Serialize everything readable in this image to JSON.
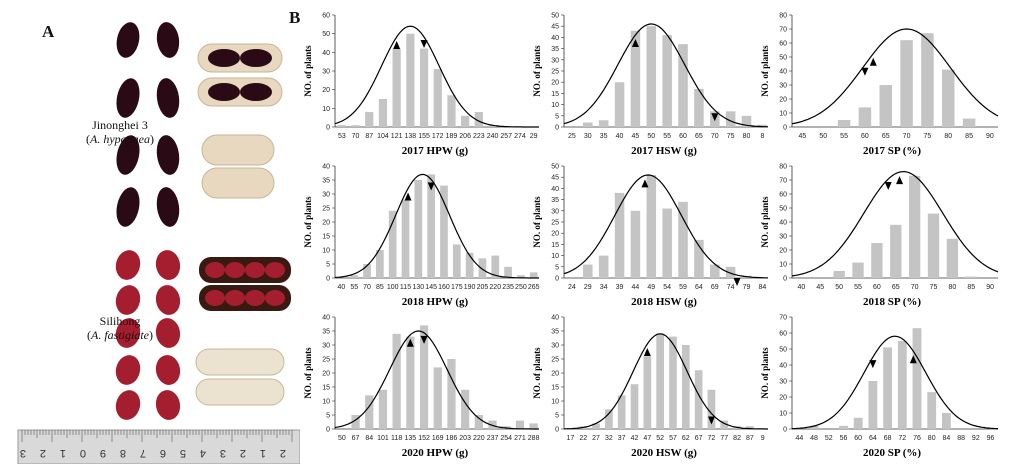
{
  "panel_a": {
    "letter": "A",
    "cultivars": [
      {
        "name": "Jinonghei 3",
        "species": "A. hypogaea"
      },
      {
        "name": "Silihong",
        "species": "A. fastigiate"
      }
    ],
    "seed_colors": {
      "black": "#2a0a14",
      "red": "#a51e30",
      "pod": "#e8d8c0",
      "pod_dark": "#c9b597"
    },
    "ruler_numbers": [
      "3",
      "2",
      "1",
      "0",
      "9",
      "8",
      "7",
      "6",
      "5",
      "4",
      "3",
      "2",
      "1",
      "2"
    ]
  },
  "panel_b": {
    "letter": "B"
  },
  "colors": {
    "bar": "#c4c4c4",
    "curve": "#000000",
    "axis": "#333333"
  },
  "chart_data": [
    {
      "type": "bar",
      "xlabel": "2017 HPW (g)",
      "ylabel": "NO. of plants",
      "ylim": [
        0,
        60
      ],
      "yticks": [
        0,
        10,
        20,
        30,
        40,
        50,
        60
      ],
      "categories": [
        "53",
        "70",
        "87",
        "104",
        "121",
        "138",
        "155",
        "172",
        "189",
        "206",
        "223",
        "240",
        "257",
        "274",
        "29"
      ],
      "values": [
        1,
        1,
        8,
        15,
        42,
        50,
        42,
        31,
        17,
        6,
        8,
        1,
        0,
        0,
        0
      ],
      "curve": {
        "mean": 138,
        "peak": 54
      },
      "markers": [
        {
          "dir": "up",
          "x": 121
        },
        {
          "dir": "down",
          "x": 155
        }
      ]
    },
    {
      "type": "bar",
      "xlabel": "2017 HSW (g)",
      "ylabel": "NO. of plants",
      "ylim": [
        0,
        50
      ],
      "yticks": [
        0,
        5,
        10,
        15,
        20,
        25,
        30,
        35,
        40,
        45,
        50
      ],
      "categories": [
        "25",
        "30",
        "35",
        "40",
        "45",
        "50",
        "55",
        "60",
        "65",
        "70",
        "75",
        "80",
        "8"
      ],
      "values": [
        0,
        2,
        3,
        20,
        43,
        45,
        41,
        37,
        17,
        7,
        7,
        5,
        1
      ],
      "curve": {
        "mean": 50,
        "peak": 46
      },
      "markers": [
        {
          "dir": "up",
          "x": 45
        },
        {
          "dir": "down",
          "x": 70
        }
      ]
    },
    {
      "type": "bar",
      "xlabel": "2017 SP (%)",
      "ylabel": "NO. of plants",
      "ylim": [
        0,
        80
      ],
      "yticks": [
        0,
        10,
        20,
        30,
        40,
        50,
        60,
        70,
        80
      ],
      "categories": [
        "45",
        "50",
        "55",
        "60",
        "65",
        "70",
        "75",
        "80",
        "85",
        "90"
      ],
      "values": [
        0,
        0,
        5,
        14,
        30,
        62,
        67,
        41,
        6,
        0
      ],
      "curve": {
        "mean": 70,
        "peak": 70
      },
      "markers": [
        {
          "dir": "down",
          "x": 60
        },
        {
          "dir": "up",
          "x": 62
        }
      ]
    },
    {
      "type": "bar",
      "xlabel": "2018 HPW (g)",
      "ylabel": "NO. of plants",
      "ylim": [
        0,
        40
      ],
      "yticks": [
        0,
        5,
        10,
        15,
        20,
        25,
        30,
        35,
        40
      ],
      "categories": [
        "40",
        "55",
        "70",
        "85",
        "100",
        "115",
        "130",
        "145",
        "160",
        "175",
        "190",
        "205",
        "220",
        "235",
        "250",
        "265"
      ],
      "values": [
        0,
        1,
        5,
        10,
        24,
        28,
        35,
        37,
        33,
        12,
        9,
        7,
        8,
        4,
        1,
        2
      ],
      "curve": {
        "mean": 135,
        "peak": 37
      },
      "markers": [
        {
          "dir": "up",
          "x": 118
        },
        {
          "dir": "down",
          "x": 145
        }
      ]
    },
    {
      "type": "bar",
      "xlabel": "2018 HSW (g)",
      "ylabel": "NO. of plants",
      "ylim": [
        0,
        50
      ],
      "yticks": [
        0,
        5,
        10,
        15,
        20,
        25,
        30,
        35,
        40,
        45,
        50
      ],
      "categories": [
        "24",
        "29",
        "34",
        "39",
        "44",
        "49",
        "54",
        "59",
        "64",
        "69",
        "74",
        "79",
        "84"
      ],
      "values": [
        0,
        6,
        10,
        38,
        30,
        46,
        31,
        34,
        17,
        6,
        5,
        1,
        0
      ],
      "curve": {
        "mean": 48,
        "peak": 46
      },
      "markers": [
        {
          "dir": "up",
          "x": 47
        },
        {
          "dir": "down",
          "x": 76
        }
      ]
    },
    {
      "type": "bar",
      "xlabel": "2018 SP (%)",
      "ylabel": "NO. of plants",
      "ylim": [
        0,
        80
      ],
      "yticks": [
        0,
        10,
        20,
        30,
        40,
        50,
        60,
        70,
        80
      ],
      "categories": [
        "40",
        "45",
        "50",
        "55",
        "60",
        "65",
        "70",
        "75",
        "80",
        "85",
        "90"
      ],
      "values": [
        0,
        0,
        5,
        11,
        25,
        38,
        73,
        46,
        28,
        1,
        0
      ],
      "curve": {
        "mean": 67,
        "peak": 76
      },
      "markers": [
        {
          "dir": "down",
          "x": 63
        },
        {
          "dir": "up",
          "x": 66
        }
      ]
    },
    {
      "type": "bar",
      "xlabel": "2020 HPW (g)",
      "ylabel": "NO. of plants",
      "ylim": [
        0,
        40
      ],
      "yticks": [
        0,
        5,
        10,
        15,
        20,
        25,
        30,
        35,
        40
      ],
      "categories": [
        "50",
        "67",
        "84",
        "101",
        "118",
        "135",
        "152",
        "169",
        "186",
        "203",
        "220",
        "237",
        "254",
        "271",
        "288"
      ],
      "values": [
        0,
        5,
        12,
        14,
        34,
        33,
        37,
        22,
        25,
        14,
        5,
        3,
        1,
        3,
        2
      ],
      "curve": {
        "mean": 145,
        "peak": 35
      },
      "markers": [
        {
          "dir": "up",
          "x": 135
        },
        {
          "dir": "down",
          "x": 152
        }
      ]
    },
    {
      "type": "bar",
      "xlabel": "2020 HSW (g)",
      "ylabel": "NO. of plants",
      "ylim": [
        0,
        40
      ],
      "yticks": [
        0,
        5,
        10,
        15,
        20,
        25,
        30,
        35,
        40
      ],
      "categories": [
        "17",
        "22",
        "27",
        "32",
        "37",
        "42",
        "47",
        "52",
        "57",
        "62",
        "67",
        "72",
        "77",
        "82",
        "87",
        "9"
      ],
      "values": [
        0,
        1,
        2,
        7,
        12,
        16,
        26,
        34,
        33,
        30,
        21,
        14,
        3,
        1,
        1,
        0
      ],
      "curve": {
        "mean": 52,
        "peak": 34
      },
      "markers": [
        {
          "dir": "up",
          "x": 47
        },
        {
          "dir": "down",
          "x": 72
        }
      ]
    },
    {
      "type": "bar",
      "xlabel": "2020 SP (%)",
      "ylabel": "NO. of plants",
      "ylim": [
        0,
        70
      ],
      "yticks": [
        0,
        10,
        20,
        30,
        40,
        50,
        60,
        70
      ],
      "categories": [
        "44",
        "48",
        "52",
        "56",
        "60",
        "64",
        "68",
        "72",
        "76",
        "80",
        "84",
        "88",
        "92",
        "96"
      ],
      "values": [
        0,
        2,
        0,
        2,
        7,
        30,
        51,
        55,
        63,
        23,
        10,
        0,
        0,
        0
      ],
      "curve": {
        "mean": 70,
        "peak": 58
      },
      "markers": [
        {
          "dir": "down",
          "x": 64
        },
        {
          "dir": "up",
          "x": 75
        }
      ]
    }
  ]
}
